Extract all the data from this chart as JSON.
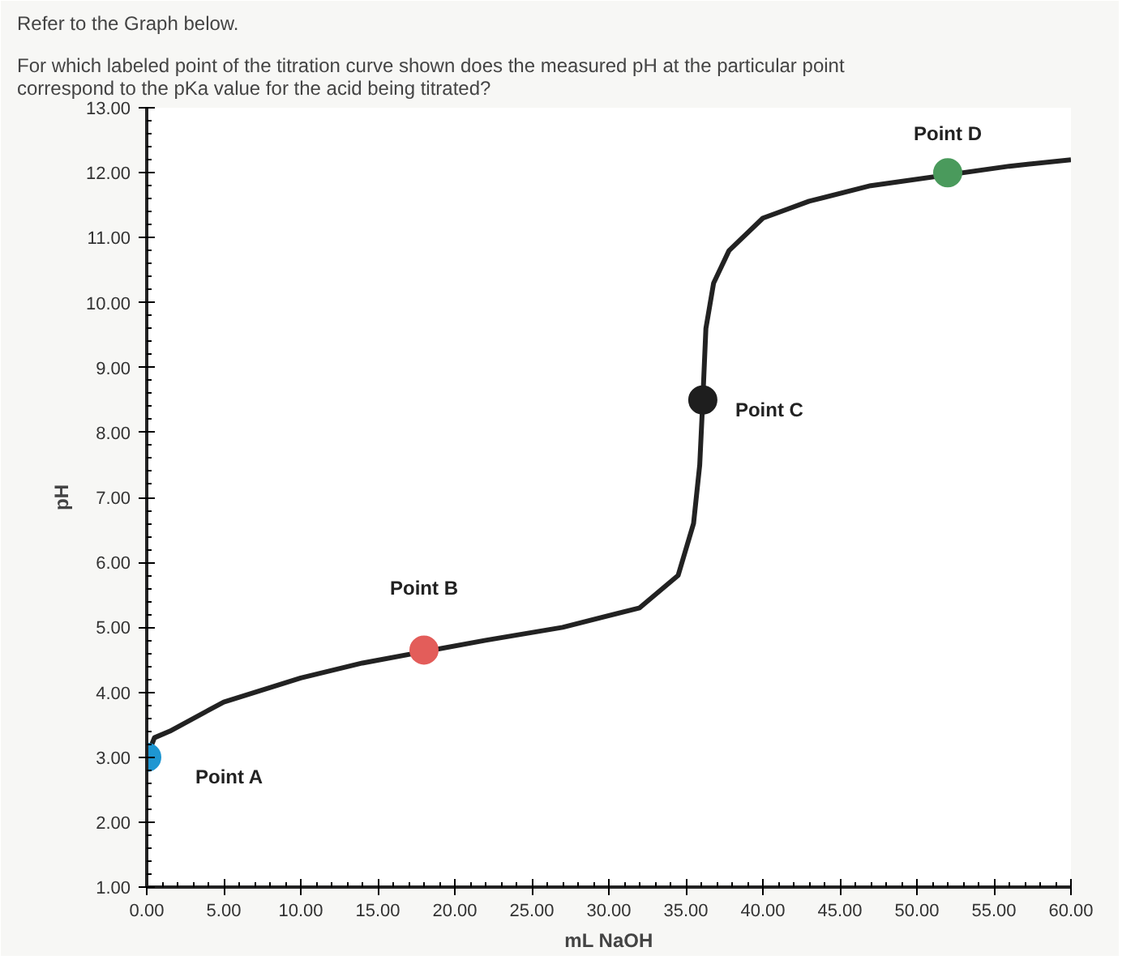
{
  "chart_data": {
    "type": "line",
    "title": "Refer to the Graph below.",
    "subtitle": "For which labeled point of the titration curve shown does the measured pH at the particular point correspond to the pKa value for the acid being titrated?",
    "xlabel": "mL NaOH",
    "ylabel": "pH",
    "xlim": [
      0,
      60
    ],
    "ylim": [
      1,
      13
    ],
    "xticks": [
      {
        "value": 0,
        "label": "0.00"
      },
      {
        "value": 5,
        "label": "5.00"
      },
      {
        "value": 10,
        "label": "10.00"
      },
      {
        "value": 15,
        "label": "15.00"
      },
      {
        "value": 20,
        "label": "20.00"
      },
      {
        "value": 25,
        "label": "25.00"
      },
      {
        "value": 30,
        "label": "30.00"
      },
      {
        "value": 35,
        "label": "35.00"
      },
      {
        "value": 40,
        "label": "40.00"
      },
      {
        "value": 45,
        "label": "45.00"
      },
      {
        "value": 50,
        "label": "50.00"
      },
      {
        "value": 55,
        "label": "55.00"
      },
      {
        "value": 60,
        "label": "60.00"
      }
    ],
    "yticks": [
      {
        "value": 1,
        "label": "1.00"
      },
      {
        "value": 2,
        "label": "2.00"
      },
      {
        "value": 3,
        "label": "3.00"
      },
      {
        "value": 4,
        "label": "4.00"
      },
      {
        "value": 5,
        "label": "5.00"
      },
      {
        "value": 6,
        "label": "6.00"
      },
      {
        "value": 7,
        "label": "7.00"
      },
      {
        "value": 8,
        "label": "8.00"
      },
      {
        "value": 9,
        "label": "9.00"
      },
      {
        "value": 10,
        "label": "10.00"
      },
      {
        "value": 11,
        "label": "11.00"
      },
      {
        "value": 12,
        "label": "12.00"
      },
      {
        "value": 13,
        "label": "13.00"
      }
    ],
    "grid": false,
    "line_style": "solid",
    "series": [
      {
        "color": "#222222",
        "marker": "none",
        "x": [
          0,
          0.5,
          1.5,
          5,
          10,
          14,
          22,
          27,
          32,
          34.5,
          35.5,
          35.9,
          36.1,
          36.3,
          36.8,
          37.8,
          40,
          43,
          47,
          56,
          60
        ],
        "values": [
          3.0,
          3.3,
          3.4,
          3.85,
          4.22,
          4.45,
          4.8,
          5.0,
          5.3,
          5.8,
          6.6,
          7.5,
          8.5,
          9.6,
          10.3,
          10.8,
          11.3,
          11.56,
          11.8,
          12.1,
          12.2
        ]
      },
      {
        "type": "scatter",
        "marker": "circle",
        "x": [
          0,
          18,
          36.1,
          52
        ],
        "values": [
          3.0,
          4.65,
          8.5,
          12.0
        ],
        "colors": [
          "#1e96d2",
          "#e35d5a",
          "#1e1e1e",
          "#4a9a5c"
        ]
      }
    ],
    "annotations": [
      {
        "text": "Point A",
        "x": 0,
        "y": 3.0
      },
      {
        "text": "Point B",
        "x": 18,
        "y": 4.65
      },
      {
        "text": "Point C",
        "x": 36.1,
        "y": 8.5
      },
      {
        "text": "Point D",
        "x": 52,
        "y": 12.0
      }
    ]
  }
}
